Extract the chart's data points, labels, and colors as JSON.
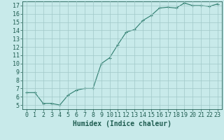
{
  "xlabel": "Humidex (Indice chaleur)",
  "x_values": [
    0,
    1,
    2,
    3,
    4,
    5,
    6,
    7,
    8,
    9,
    10,
    11,
    12,
    13,
    14,
    15,
    16,
    17,
    18,
    19,
    20,
    21,
    22,
    23
  ],
  "y_values": [
    6.5,
    6.5,
    5.2,
    5.2,
    5.0,
    6.2,
    6.8,
    7.0,
    7.0,
    10.0,
    10.7,
    12.3,
    13.8,
    14.1,
    15.2,
    15.8,
    16.7,
    16.8,
    16.7,
    17.3,
    17.0,
    17.0,
    16.9,
    17.2
  ],
  "line_color": "#2e7d6e",
  "marker": "+",
  "marker_size": 3,
  "marker_linewidth": 0.8,
  "line_width": 0.8,
  "background_color": "#c8eaea",
  "grid_color": "#a0c8c8",
  "ylim": [
    4.5,
    17.5
  ],
  "xlim": [
    -0.5,
    23.5
  ],
  "yticks": [
    5,
    6,
    7,
    8,
    9,
    10,
    11,
    12,
    13,
    14,
    15,
    16,
    17
  ],
  "xticks": [
    0,
    1,
    2,
    3,
    4,
    5,
    6,
    7,
    8,
    9,
    10,
    11,
    12,
    13,
    14,
    15,
    16,
    17,
    18,
    19,
    20,
    21,
    22,
    23
  ],
  "tick_color": "#1e5c50",
  "label_color": "#1e5c50",
  "tick_fontsize": 6,
  "xlabel_fontsize": 7
}
